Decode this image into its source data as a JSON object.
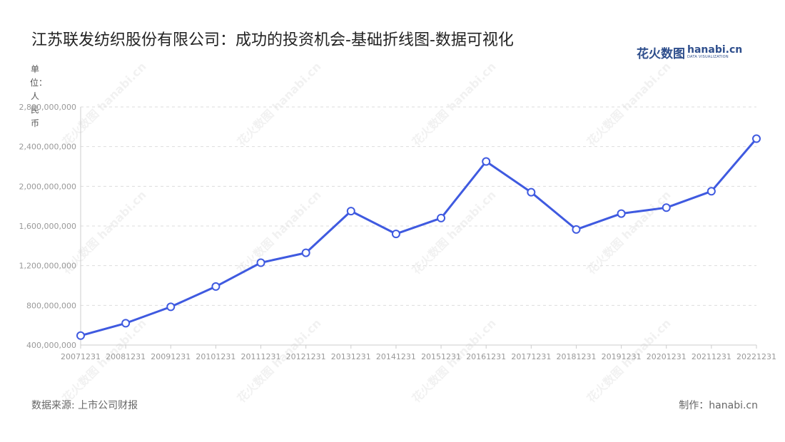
{
  "title": "江苏联发纺织股份有限公司：成功的投资机会-基础折线图-数据可视化",
  "logo": {
    "cn": "花火数图",
    "en": "hanabi.cn",
    "sub": "DATA VISUALIZATION"
  },
  "unit_label": "单位：人民币",
  "source": "数据来源: 上市公司财报",
  "credit": "制作：hanabi.cn",
  "watermark": "花火数图 hanabi.cn",
  "colors": {
    "line": "#3f5ae0",
    "grid": "#dddddd",
    "axis": "#cccccc",
    "tick_text": "#999999"
  },
  "chart_data": {
    "type": "line",
    "x": [
      "20071231",
      "20081231",
      "20091231",
      "20101231",
      "20111231",
      "20121231",
      "20131231",
      "20141231",
      "20151231",
      "20161231",
      "20171231",
      "20181231",
      "20191231",
      "20201231",
      "20211231",
      "20221231"
    ],
    "series": [
      {
        "values": [
          495000000,
          620000000,
          785000000,
          990000000,
          1230000000,
          1330000000,
          1750000000,
          1520000000,
          1680000000,
          2250000000,
          1940000000,
          1565000000,
          1725000000,
          1785000000,
          1950000000,
          2480000000
        ]
      }
    ],
    "y_ticks": [
      "400,000,000",
      "800,000,000",
      "1,200,000,000",
      "1,600,000,000",
      "2,000,000,000",
      "2,400,000,000",
      "2,800,000,000"
    ],
    "ylim": [
      400000000,
      2800000000
    ],
    "grid": true,
    "legend": "none"
  }
}
